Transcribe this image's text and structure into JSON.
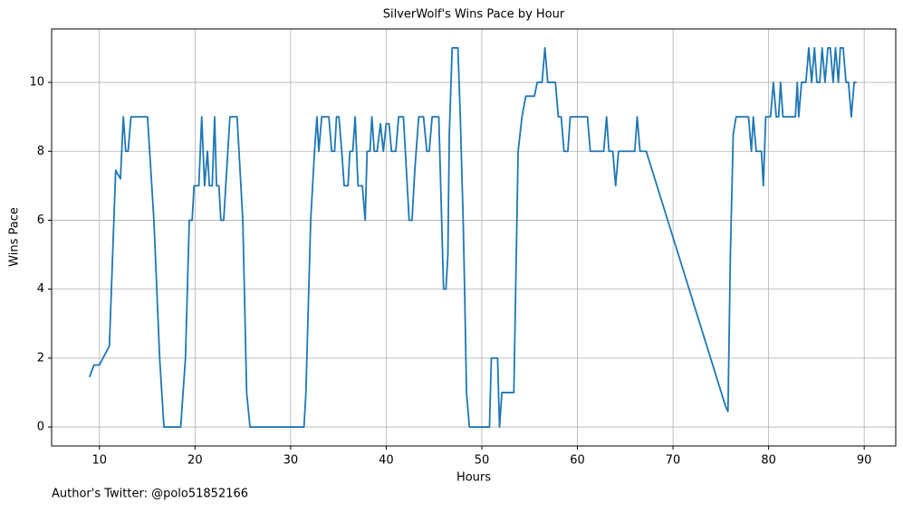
{
  "chart_data": {
    "type": "line",
    "title": "SilverWolf's Wins Pace by Hour",
    "xlabel": "Hours",
    "ylabel": "Wins Pace",
    "footnote": "Author's Twitter: @polo51852166",
    "x": [
      8.96,
      9.43,
      10,
      11.04,
      11.7,
      12.2,
      12.5,
      12.75,
      13.0,
      13.3,
      15.03,
      15.7,
      16.3,
      16.75,
      18.5,
      19.0,
      19.4,
      19.7,
      19.9,
      20.4,
      20.7,
      21.0,
      21.3,
      21.5,
      21.8,
      22.05,
      22.25,
      22.5,
      22.7,
      23.0,
      23.65,
      24.4,
      25.0,
      25.4,
      25.75,
      31.4,
      31.6,
      32.1,
      32.5,
      32.75,
      32.95,
      33.25,
      34.0,
      34.3,
      34.6,
      34.8,
      35.05,
      35.35,
      35.6,
      36.0,
      36.2,
      36.5,
      36.75,
      37.05,
      37.5,
      37.8,
      38.0,
      38.3,
      38.5,
      38.75,
      39.05,
      39.4,
      39.7,
      40.0,
      40.3,
      40.55,
      41.0,
      41.3,
      41.8,
      42.4,
      42.7,
      43.0,
      43.4,
      43.9,
      44.25,
      44.5,
      44.8,
      45.5,
      45.8,
      46.0,
      46.25,
      46.45,
      46.6,
      46.9,
      47.5,
      47.75,
      48.05,
      48.2,
      48.4,
      48.7,
      50.8,
      51.0,
      51.65,
      51.85,
      52.1,
      53.35,
      53.8,
      54.2,
      54.6,
      55.5,
      55.8,
      56.3,
      56.6,
      56.9,
      57.7,
      58.0,
      58.3,
      58.6,
      59.0,
      59.25,
      61.05,
      61.35,
      62.75,
      63.05,
      63.3,
      63.7,
      64.0,
      64.3,
      66.0,
      66.25,
      66.55,
      67.2,
      75.5,
      75.75,
      76.0,
      76.3,
      76.6,
      77.9,
      78.2,
      78.4,
      78.7,
      79.25,
      79.45,
      79.7,
      80.2,
      80.5,
      80.8,
      81.05,
      81.25,
      81.5,
      82.8,
      83.0,
      83.15,
      83.45,
      83.9,
      84.2,
      84.5,
      84.8,
      85.05,
      85.35,
      85.6,
      85.9,
      86.2,
      86.45,
      86.75,
      87.0,
      87.3,
      87.5,
      87.8,
      88.1,
      88.35,
      88.65,
      88.95,
      89.2
    ],
    "series": [
      {
        "name": "Wins Pace",
        "color": "#1f77b4",
        "values": [
          1.45,
          1.8,
          1.8,
          2.35,
          7.45,
          7.2,
          9,
          8,
          8,
          9,
          9,
          6,
          2,
          0,
          0,
          2,
          6,
          6,
          7,
          7,
          9,
          7,
          8,
          7,
          7,
          9,
          7,
          7,
          6,
          6,
          9,
          9,
          6,
          1,
          0,
          0,
          1,
          6,
          8,
          9,
          8,
          9,
          9,
          8,
          8,
          9,
          9,
          8,
          7,
          7,
          8,
          8,
          9,
          7,
          7,
          6,
          8,
          8,
          9,
          8,
          8,
          8.8,
          8,
          8.8,
          8.8,
          8,
          8,
          9,
          9,
          6,
          6,
          7.5,
          9,
          9,
          8,
          8,
          9,
          9,
          6,
          4,
          4,
          5,
          8.5,
          11,
          11,
          9,
          6,
          4,
          1,
          0,
          0,
          2,
          2,
          0,
          1,
          1,
          8,
          9,
          9.6,
          9.6,
          10,
          10,
          11,
          10,
          10,
          9,
          9,
          8,
          8,
          9,
          9,
          8,
          8,
          9,
          8,
          8,
          7,
          8,
          8,
          9,
          8,
          8,
          0.6,
          0.45,
          5,
          8.5,
          9,
          9,
          8,
          9,
          8,
          8,
          7,
          9,
          9,
          10,
          9,
          9,
          10,
          9,
          9,
          10,
          9,
          10,
          10,
          11,
          10,
          11,
          10,
          10,
          11,
          10,
          11,
          11,
          10,
          11,
          10,
          11,
          11,
          10,
          10,
          9,
          10,
          10
        ]
      }
    ],
    "xlim": [
      5,
      93.3
    ],
    "ylim": [
      -0.55,
      11.55
    ],
    "xticks": [
      10,
      20,
      30,
      40,
      50,
      60,
      70,
      80,
      90
    ],
    "yticks": [
      0,
      2,
      4,
      6,
      8,
      10
    ],
    "grid": true
  }
}
